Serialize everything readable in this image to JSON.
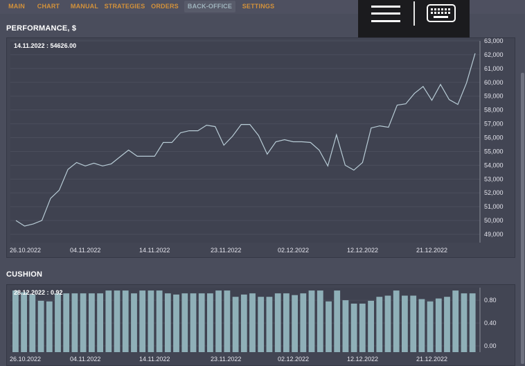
{
  "nav": {
    "tabs": [
      {
        "label": "MAIN",
        "active": false
      },
      {
        "label": "CHART",
        "active": false
      },
      {
        "label": "MANUAL",
        "active": false
      },
      {
        "label": "STRATEGIES",
        "active": false
      },
      {
        "label": "ORDERS",
        "active": false
      },
      {
        "label": "BACK-OFFICE",
        "active": true
      },
      {
        "label": "SETTINGS",
        "active": false
      }
    ]
  },
  "overlay": {
    "menu_icon": "hamburger-menu-icon",
    "keyboard_icon": "keyboard-icon"
  },
  "performance": {
    "title": "PERFORMANCE, $",
    "readout": "14.11.2022 : 54626.00"
  },
  "cushion": {
    "title": "CUSHION",
    "readout": "28.12.2022 : 0.92"
  },
  "colors": {
    "tab_text": "#d4923a",
    "active_tab_text": "#9fb4bd",
    "line": "#b8ccd6",
    "bar": "#8fb0b8",
    "panel_bg": "#424553"
  },
  "chart_data": [
    {
      "type": "line",
      "title": "PERFORMANCE, $",
      "x_ticks": [
        "26.10.2022",
        "04.11.2022",
        "14.11.2022",
        "23.11.2022",
        "02.12.2022",
        "12.12.2022",
        "21.12.2022"
      ],
      "y_ticks": [
        "49,000",
        "50,000",
        "51,000",
        "52,000",
        "53,000",
        "54,000",
        "55,000",
        "56,000",
        "57,000",
        "58,000",
        "59,000",
        "60,000",
        "61,000",
        "62,000",
        "63,000"
      ],
      "ylim": [
        48400,
        63000
      ],
      "values": [
        50000,
        49600,
        49750,
        50000,
        51600,
        52200,
        53700,
        54200,
        53950,
        54150,
        53950,
        54100,
        54600,
        55100,
        54650,
        54650,
        54650,
        55650,
        55650,
        56350,
        56500,
        56500,
        56900,
        56800,
        55450,
        56100,
        56950,
        56950,
        56150,
        54800,
        55700,
        55850,
        55700,
        55700,
        55650,
        55100,
        53950,
        56200,
        54000,
        53650,
        54200,
        56700,
        56850,
        56750,
        58350,
        58450,
        59200,
        59700,
        58700,
        59850,
        58750,
        58400,
        59950,
        62100
      ]
    },
    {
      "type": "bar",
      "title": "CUSHION",
      "x_ticks": [
        "26.10.2022",
        "04.11.2022",
        "14.11.2022",
        "23.11.2022",
        "02.12.2022",
        "12.12.2022",
        "21.12.2022"
      ],
      "y_ticks": [
        "0.00",
        "0.40",
        "0.80"
      ],
      "ylim": [
        -0.11,
        1.02
      ],
      "values": [
        0.97,
        0.94,
        0.9,
        0.79,
        0.78,
        0.92,
        0.92,
        0.92,
        0.92,
        0.92,
        0.92,
        0.97,
        0.97,
        0.97,
        0.92,
        0.97,
        0.97,
        0.97,
        0.92,
        0.9,
        0.92,
        0.92,
        0.92,
        0.92,
        0.97,
        0.97,
        0.86,
        0.9,
        0.92,
        0.86,
        0.86,
        0.92,
        0.92,
        0.89,
        0.92,
        0.97,
        0.97,
        0.78,
        0.97,
        0.8,
        0.74,
        0.74,
        0.79,
        0.86,
        0.88,
        0.97,
        0.88,
        0.88,
        0.82,
        0.78,
        0.83,
        0.86,
        0.97,
        0.92,
        0.92
      ]
    }
  ]
}
